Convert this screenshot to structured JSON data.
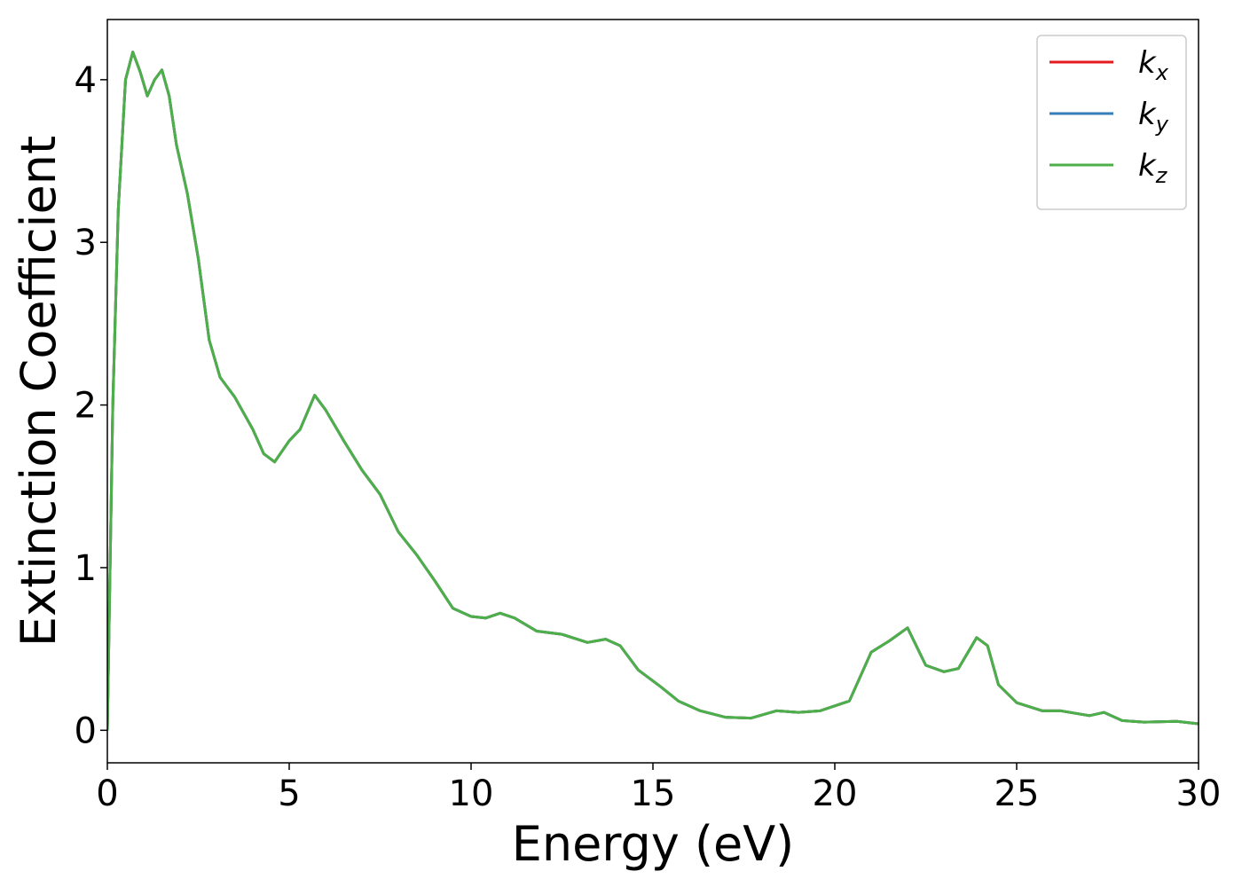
{
  "chart_data": {
    "type": "line",
    "xlabel": "Energy (eV)",
    "ylabel": "Extinction Coefficient",
    "x": [
      0,
      0.15,
      0.3,
      0.5,
      0.7,
      0.9,
      1.1,
      1.3,
      1.5,
      1.7,
      1.9,
      2.2,
      2.5,
      2.8,
      3.1,
      3.5,
      4.0,
      4.3,
      4.6,
      5.0,
      5.3,
      5.7,
      6.0,
      6.5,
      7.0,
      7.5,
      8.0,
      8.5,
      9.0,
      9.5,
      10.0,
      10.4,
      10.8,
      11.2,
      11.8,
      12.5,
      13.2,
      13.7,
      14.1,
      14.6,
      15.2,
      15.7,
      16.3,
      17.0,
      17.7,
      18.4,
      19.0,
      19.6,
      20.4,
      21.0,
      21.5,
      22.0,
      22.5,
      23.0,
      23.4,
      23.9,
      24.2,
      24.5,
      25.0,
      25.7,
      26.2,
      27.0,
      27.4,
      27.9,
      28.5,
      29.4,
      30
    ],
    "series": [
      {
        "name": "kx",
        "color": "#e41a1c",
        "values": [
          0,
          2.0,
          3.2,
          4.0,
          4.17,
          4.05,
          3.9,
          4.0,
          4.06,
          3.9,
          3.6,
          3.3,
          2.9,
          2.4,
          2.17,
          2.05,
          1.85,
          1.7,
          1.65,
          1.78,
          1.85,
          2.06,
          1.97,
          1.78,
          1.6,
          1.45,
          1.22,
          1.08,
          0.92,
          0.75,
          0.7,
          0.69,
          0.72,
          0.69,
          0.61,
          0.59,
          0.54,
          0.56,
          0.52,
          0.37,
          0.27,
          0.18,
          0.12,
          0.08,
          0.075,
          0.12,
          0.11,
          0.12,
          0.18,
          0.48,
          0.55,
          0.63,
          0.4,
          0.36,
          0.38,
          0.57,
          0.52,
          0.28,
          0.17,
          0.12,
          0.12,
          0.09,
          0.11,
          0.06,
          0.05,
          0.055,
          0.04
        ]
      },
      {
        "name": "ky",
        "color": "#377eb8",
        "values": [
          0,
          2.0,
          3.2,
          4.0,
          4.17,
          4.05,
          3.9,
          4.0,
          4.06,
          3.9,
          3.6,
          3.3,
          2.9,
          2.4,
          2.17,
          2.05,
          1.85,
          1.7,
          1.65,
          1.78,
          1.85,
          2.06,
          1.97,
          1.78,
          1.6,
          1.45,
          1.22,
          1.08,
          0.92,
          0.75,
          0.7,
          0.69,
          0.72,
          0.69,
          0.61,
          0.59,
          0.54,
          0.56,
          0.52,
          0.37,
          0.27,
          0.18,
          0.12,
          0.08,
          0.075,
          0.12,
          0.11,
          0.12,
          0.18,
          0.48,
          0.55,
          0.63,
          0.4,
          0.36,
          0.38,
          0.57,
          0.52,
          0.28,
          0.17,
          0.12,
          0.12,
          0.09,
          0.11,
          0.06,
          0.05,
          0.055,
          0.04
        ]
      },
      {
        "name": "kz",
        "color": "#4daf4a",
        "values": [
          0,
          2.0,
          3.2,
          4.0,
          4.17,
          4.05,
          3.9,
          4.0,
          4.06,
          3.9,
          3.6,
          3.3,
          2.9,
          2.4,
          2.17,
          2.05,
          1.85,
          1.7,
          1.65,
          1.78,
          1.85,
          2.06,
          1.97,
          1.78,
          1.6,
          1.45,
          1.22,
          1.08,
          0.92,
          0.75,
          0.7,
          0.69,
          0.72,
          0.69,
          0.61,
          0.59,
          0.54,
          0.56,
          0.52,
          0.37,
          0.27,
          0.18,
          0.12,
          0.08,
          0.075,
          0.12,
          0.11,
          0.12,
          0.18,
          0.48,
          0.55,
          0.63,
          0.4,
          0.36,
          0.38,
          0.57,
          0.52,
          0.28,
          0.17,
          0.12,
          0.12,
          0.09,
          0.11,
          0.06,
          0.05,
          0.055,
          0.04
        ]
      }
    ],
    "xlim": [
      0,
      30
    ],
    "xticks": [
      0,
      5,
      10,
      15,
      20,
      25,
      30
    ],
    "ylim": [
      -0.2,
      4.37
    ],
    "yticks": [
      0,
      1,
      2,
      3,
      4
    ],
    "grid": false,
    "legend": "upper right"
  }
}
